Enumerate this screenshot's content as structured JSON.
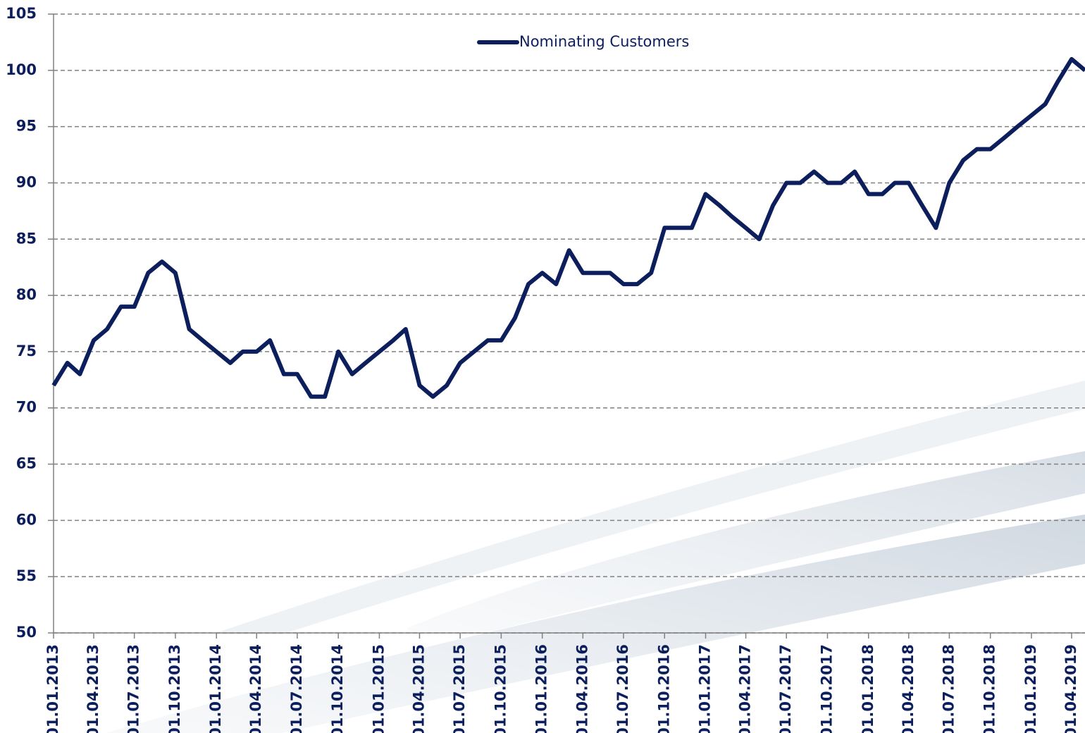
{
  "chart_data": {
    "type": "line",
    "x": [
      "01.01.2013",
      "01.02.2013",
      "01.03.2013",
      "01.04.2013",
      "01.05.2013",
      "01.06.2013",
      "01.07.2013",
      "01.08.2013",
      "01.09.2013",
      "01.10.2013",
      "01.11.2013",
      "01.12.2013",
      "01.01.2014",
      "01.02.2014",
      "01.03.2014",
      "01.04.2014",
      "01.05.2014",
      "01.06.2014",
      "01.07.2014",
      "01.08.2014",
      "01.09.2014",
      "01.10.2014",
      "01.11.2014",
      "01.12.2014",
      "01.01.2015",
      "01.02.2015",
      "01.03.2015",
      "01.04.2015",
      "01.05.2015",
      "01.06.2015",
      "01.07.2015",
      "01.08.2015",
      "01.09.2015",
      "01.10.2015",
      "01.11.2015",
      "01.12.2015",
      "01.01.2016",
      "01.02.2016",
      "01.03.2016",
      "01.04.2016",
      "01.05.2016",
      "01.06.2016",
      "01.07.2016",
      "01.08.2016",
      "01.09.2016",
      "01.10.2016",
      "01.11.2016",
      "01.12.2016",
      "01.01.2017",
      "01.02.2017",
      "01.03.2017",
      "01.04.2017",
      "01.05.2017",
      "01.06.2017",
      "01.07.2017",
      "01.08.2017",
      "01.09.2017",
      "01.10.2017",
      "01.11.2017",
      "01.12.2017",
      "01.01.2018",
      "01.02.2018",
      "01.03.2018",
      "01.04.2018",
      "01.05.2018",
      "01.06.2018",
      "01.07.2018",
      "01.08.2018",
      "01.09.2018",
      "01.10.2018",
      "01.11.2018",
      "01.12.2018",
      "01.01.2019",
      "01.02.2019",
      "01.03.2019",
      "01.04.2019",
      "01.05.2019"
    ],
    "series": [
      {
        "name": "Nominating Customers",
        "color": "#0c1f5c",
        "values": [
          72,
          74,
          73,
          76,
          77,
          79,
          79,
          82,
          83,
          82,
          77,
          76,
          75,
          74,
          75,
          75,
          76,
          73,
          73,
          71,
          71,
          75,
          73,
          74,
          75,
          76,
          77,
          72,
          71,
          72,
          74,
          75,
          76,
          76,
          78,
          81,
          82,
          81,
          84,
          82,
          82,
          82,
          81,
          81,
          82,
          86,
          86,
          86,
          89,
          88,
          87,
          86,
          85,
          88,
          90,
          90,
          91,
          90,
          90,
          91,
          89,
          89,
          90,
          90,
          88,
          86,
          90,
          92,
          93,
          93,
          94,
          95,
          96,
          97,
          99,
          101,
          100
        ]
      }
    ],
    "xlim": [
      "01.01.2013",
      "01.05.2019"
    ],
    "xticks": [
      "01.01.2013",
      "01.04.2013",
      "01.07.2013",
      "01.10.2013",
      "01.01.2014",
      "01.04.2014",
      "01.07.2014",
      "01.10.2014",
      "01.01.2015",
      "01.04.2015",
      "01.07.2015",
      "01.10.2015",
      "01.01.2016",
      "01.04.2016",
      "01.07.2016",
      "01.10.2016",
      "01.01.2017",
      "01.04.2017",
      "01.07.2017",
      "01.10.2017",
      "01.01.2018",
      "01.04.2018",
      "01.07.2018",
      "01.10.2018",
      "01.01.2019",
      "01.04.2019"
    ],
    "ylim": [
      50,
      105
    ],
    "yticks": [
      50,
      55,
      60,
      65,
      70,
      75,
      80,
      85,
      90,
      95,
      100,
      105
    ],
    "grid": true
  }
}
